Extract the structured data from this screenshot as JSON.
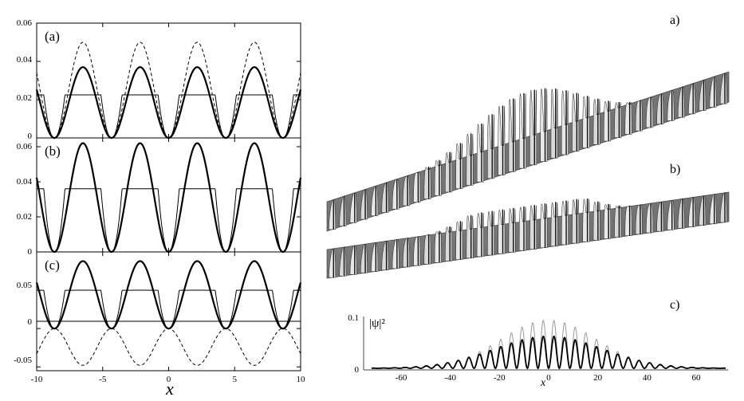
{
  "chart_data": [
    {
      "type": "line",
      "panel_label": "(a)",
      "ylim": [
        0,
        0.06
      ],
      "yticks": [
        "0",
        "0.02",
        "0.04",
        "0.06"
      ],
      "xlim": [
        -10,
        10
      ],
      "period": 4.33,
      "series": [
        {
          "style": "thick-solid",
          "shape": "cos2",
          "amplitude": 0.037,
          "offset": 0
        },
        {
          "style": "dashed",
          "shape": "cos2",
          "amplitude": 0.05,
          "offset": 0
        },
        {
          "style": "thin-solid",
          "shape": "flat-top",
          "amplitude": 0.0225,
          "offset": 0
        }
      ]
    },
    {
      "type": "line",
      "panel_label": "(b)",
      "ylim": [
        0,
        0.065
      ],
      "yticks": [
        "0",
        "0.02",
        "0.04",
        "0.06"
      ],
      "xlim": [
        -10,
        10
      ],
      "period": 4.33,
      "series": [
        {
          "style": "thick-solid",
          "shape": "cos2",
          "amplitude": 0.062,
          "offset": 0
        },
        {
          "style": "thin-solid",
          "shape": "flat-top",
          "amplitude": 0.036,
          "offset": 0
        }
      ]
    },
    {
      "type": "line",
      "panel_label": "(c)",
      "ylim": [
        -0.055,
        0.1
      ],
      "yticks": [
        "-0.05",
        "0",
        "0.05"
      ],
      "xlim": [
        -10,
        10
      ],
      "xticks": [
        "-10",
        "-5",
        "0",
        "5",
        "10"
      ],
      "xlabel": "x",
      "period": 4.33,
      "series": [
        {
          "style": "thick-solid",
          "shape": "cos2",
          "amplitude": 0.088,
          "offset": 0
        },
        {
          "style": "thin-solid",
          "shape": "flat-top",
          "amplitude": 0.05,
          "offset": 0
        },
        {
          "style": "dashed",
          "shape": "neg-cos2",
          "amplitude": 0.048,
          "offset": 0.5
        }
      ]
    },
    {
      "type": "area",
      "panel_label": "a)",
      "description_kind": "3d-surface"
    },
    {
      "type": "area",
      "panel_label": "b)",
      "description_kind": "3d-surface"
    },
    {
      "type": "line",
      "panel_label": "c)",
      "ylabel": "|ψ|²",
      "xlabel": "x",
      "ylim": [
        0,
        0.1
      ],
      "yticks": [
        "0",
        "0.1"
      ],
      "xlim": [
        -72,
        72
      ],
      "xticks": [
        "-60",
        "-40",
        "-20",
        "0",
        "20",
        "40",
        "60"
      ],
      "period": 4.33,
      "series": [
        {
          "style": "thin-gray",
          "envelope_peak": 0.093,
          "envelope_width": 30
        },
        {
          "style": "thick-black",
          "envelope_peak": 0.062,
          "envelope_width": 34
        }
      ]
    }
  ]
}
